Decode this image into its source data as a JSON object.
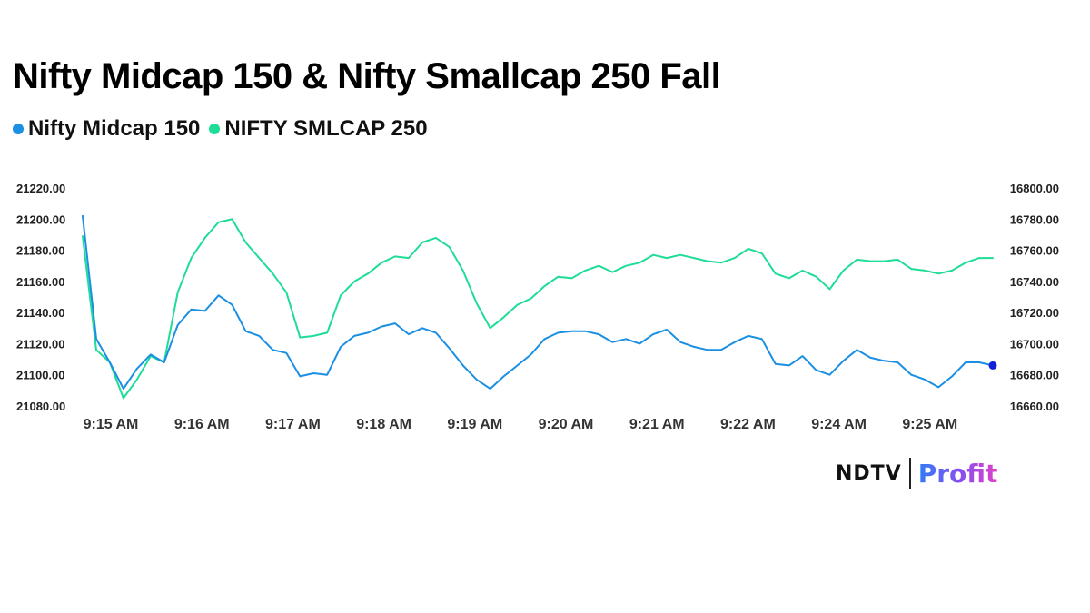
{
  "header": {
    "title": "Nifty Midcap 150 & Nifty Smallcap 250 Fall"
  },
  "legend": [
    {
      "label": "Nifty Midcap 150",
      "color": "#1a8fe3"
    },
    {
      "label": "NIFTY SMLCAP 250",
      "color": "#1fdc96"
    }
  ],
  "brand": {
    "left": "NDTV",
    "right": "Profit"
  },
  "chart_data": {
    "type": "line",
    "x_tick_labels": [
      "9:15 AM",
      "9:16 AM",
      "9:17 AM",
      "9:18 AM",
      "9:19 AM",
      "9:20 AM",
      "9:21 AM",
      "9:22 AM",
      "9:24 AM",
      "9:25 AM"
    ],
    "y_left": {
      "range": [
        21080,
        21220
      ],
      "ticks": [
        "21220.00",
        "21200.00",
        "21180.00",
        "21160.00",
        "21140.00",
        "21120.00",
        "21100.00",
        "21080.00"
      ]
    },
    "y_right": {
      "range": [
        16660,
        16800
      ],
      "ticks": [
        "16800.00",
        "16780.00",
        "16760.00",
        "16740.00",
        "16720.00",
        "16700.00",
        "16680.00",
        "16660.00"
      ]
    },
    "grid": false,
    "series": [
      {
        "name": "Nifty Midcap 150",
        "axis": "left",
        "color": "#1a8fe3",
        "values": [
          21202,
          21123,
          21108,
          21091,
          21104,
          21113,
          21108,
          21132,
          21142,
          21141,
          21151,
          21145,
          21128,
          21125,
          21116,
          21114,
          21099,
          21101,
          21100,
          21118,
          21125,
          21127,
          21131,
          21133,
          21126,
          21130,
          21127,
          21117,
          21106,
          21097,
          21091,
          21099,
          21106,
          21113,
          21123,
          21127,
          21128,
          21128,
          21126,
          21121,
          21123,
          21120,
          21126,
          21129,
          21121,
          21118,
          21116,
          21116,
          21121,
          21125,
          21123,
          21107,
          21106,
          21112,
          21103,
          21100,
          21109,
          21116,
          21111,
          21109,
          21108,
          21100,
          21097,
          21092,
          21099,
          21108,
          21108,
          21106
        ]
      },
      {
        "name": "NIFTY SMLCAP 250",
        "axis": "right",
        "color": "#1fdc96",
        "values": [
          16769,
          16696,
          16688,
          16665,
          16677,
          16692,
          16688,
          16733,
          16755,
          16768,
          16778,
          16780,
          16765,
          16755,
          16745,
          16733,
          16704,
          16705,
          16707,
          16731,
          16740,
          16745,
          16752,
          16756,
          16755,
          16765,
          16768,
          16762,
          16747,
          16726,
          16710,
          16717,
          16725,
          16729,
          16737,
          16743,
          16742,
          16747,
          16750,
          16746,
          16750,
          16752,
          16757,
          16755,
          16757,
          16755,
          16753,
          16752,
          16755,
          16761,
          16758,
          16745,
          16742,
          16747,
          16743,
          16735,
          16747,
          16754,
          16753,
          16753,
          16754,
          16748,
          16747,
          16745,
          16747,
          16752,
          16755,
          16755
        ]
      }
    ],
    "last_point_marker": {
      "series": "Nifty Midcap 150",
      "color": "#1420d8"
    }
  }
}
